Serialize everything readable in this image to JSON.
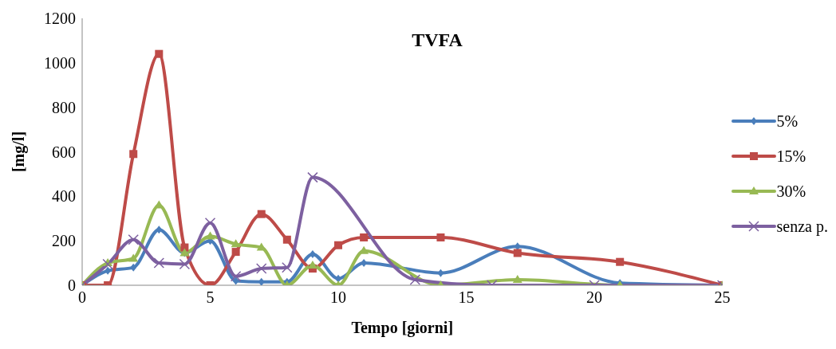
{
  "chart_data": {
    "type": "line",
    "title": "TVFA",
    "xlabel": "Tempo [giorni]",
    "ylabel": "[mg/l]",
    "xlim": [
      0,
      25
    ],
    "xticks": [
      0,
      5,
      10,
      15,
      20,
      25
    ],
    "ylim": [
      0,
      1200
    ],
    "yticks": [
      0,
      200,
      400,
      600,
      800,
      1000,
      1200
    ],
    "legend": "right",
    "series": [
      {
        "name": "5%",
        "color": "#4a7ebb",
        "marker": "diamond",
        "x": [
          0,
          1,
          2,
          3,
          4,
          5,
          6,
          7,
          8,
          9,
          10,
          11,
          14,
          17,
          21,
          25
        ],
        "values": [
          0,
          65,
          80,
          250,
          145,
          200,
          20,
          15,
          15,
          140,
          30,
          100,
          55,
          175,
          10,
          0
        ]
      },
      {
        "name": "15%",
        "color": "#be4b48",
        "marker": "square",
        "x": [
          0,
          1,
          2,
          3,
          4,
          5,
          6,
          7,
          8,
          9,
          10,
          11,
          14,
          17,
          21,
          25
        ],
        "values": [
          0,
          0,
          590,
          1040,
          170,
          0,
          150,
          320,
          205,
          75,
          180,
          215,
          215,
          145,
          105,
          0
        ]
      },
      {
        "name": "30%",
        "color": "#98b954",
        "marker": "triangle",
        "x": [
          0,
          1,
          2,
          3,
          4,
          5,
          6,
          7,
          8,
          9,
          10,
          11,
          14,
          17,
          21,
          25
        ],
        "values": [
          0,
          100,
          120,
          360,
          145,
          220,
          185,
          170,
          0,
          90,
          0,
          155,
          0,
          25,
          0,
          0
        ]
      },
      {
        "name": "senza p.",
        "color": "#7d60a0",
        "marker": "cross",
        "x": [
          0,
          1,
          2,
          3,
          4,
          5,
          6,
          7,
          8,
          9,
          13,
          16,
          20,
          25
        ],
        "values": [
          0,
          95,
          205,
          100,
          95,
          280,
          40,
          75,
          80,
          485,
          25,
          0,
          0,
          0
        ]
      }
    ]
  }
}
